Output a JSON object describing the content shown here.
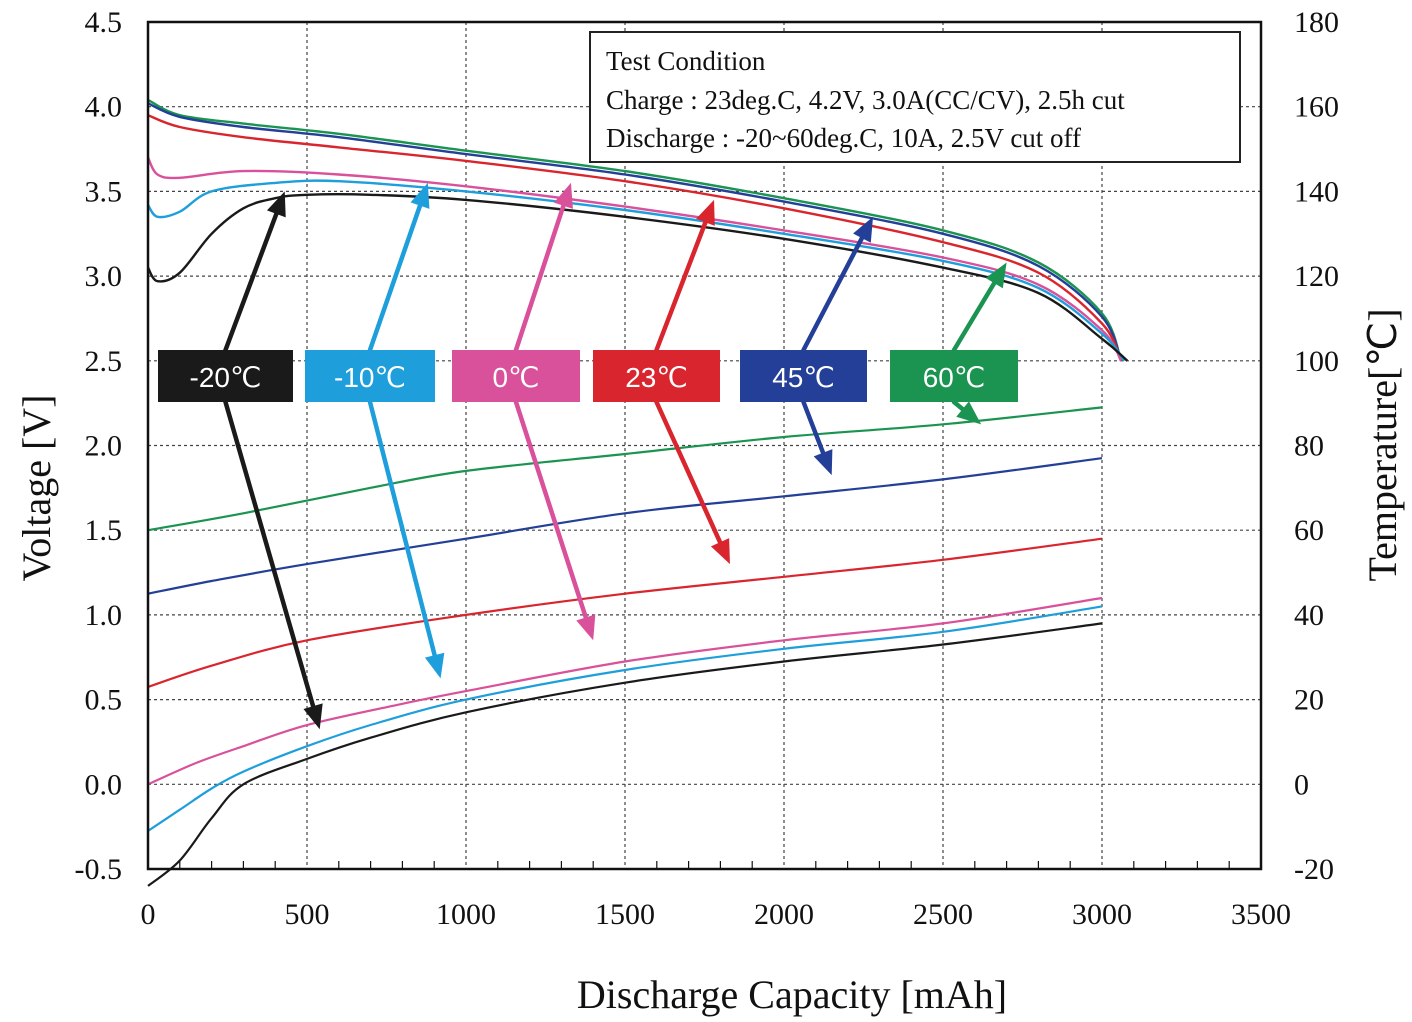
{
  "chart_data": {
    "type": "line",
    "xlabel": "Discharge Capacity [mAh]",
    "ylabel": "Voltage [V]",
    "y2label": "Temperature[℃]",
    "xlim": [
      0,
      3500
    ],
    "ylim": [
      -0.5,
      4.5
    ],
    "y2lim": [
      -20,
      180
    ],
    "x_ticks": [
      "0",
      "500",
      "1000",
      "1500",
      "2000",
      "2500",
      "3000",
      "3500"
    ],
    "y_ticks": [
      "-0.5",
      "0.0",
      "0.5",
      "1.0",
      "1.5",
      "2.0",
      "2.5",
      "3.0",
      "3.5",
      "4.0",
      "4.5"
    ],
    "y2_ticks": [
      "-20",
      "0",
      "20",
      "40",
      "60",
      "80",
      "100",
      "120",
      "140",
      "160",
      "180"
    ],
    "grid": true,
    "test_condition": {
      "title": "Test Condition",
      "charge": "Charge : 23deg.C, 4.2V, 3.0A(CC/CV), 2.5h cut",
      "discharge": "Discharge : -20~60deg.C, 10A, 2.5V cut off"
    },
    "series": [
      {
        "name": "-20℃",
        "color": "#1a1a1a",
        "voltage": [
          [
            0,
            3.05
          ],
          [
            30,
            2.97
          ],
          [
            100,
            3.02
          ],
          [
            200,
            3.25
          ],
          [
            300,
            3.4
          ],
          [
            400,
            3.46
          ],
          [
            500,
            3.48
          ],
          [
            700,
            3.48
          ],
          [
            1000,
            3.45
          ],
          [
            1500,
            3.35
          ],
          [
            2000,
            3.22
          ],
          [
            2500,
            3.05
          ],
          [
            2800,
            2.9
          ],
          [
            3000,
            2.63
          ],
          [
            3080,
            2.5
          ]
        ],
        "temperature": [
          [
            0,
            -24
          ],
          [
            100,
            -18
          ],
          [
            200,
            -8
          ],
          [
            300,
            0
          ],
          [
            500,
            6
          ],
          [
            700,
            11
          ],
          [
            1000,
            17
          ],
          [
            1500,
            24
          ],
          [
            2000,
            29
          ],
          [
            2500,
            33
          ],
          [
            3000,
            38
          ]
        ]
      },
      {
        "name": "-10℃",
        "color": "#1e9fdc",
        "voltage": [
          [
            0,
            3.42
          ],
          [
            30,
            3.35
          ],
          [
            100,
            3.38
          ],
          [
            200,
            3.5
          ],
          [
            400,
            3.55
          ],
          [
            600,
            3.56
          ],
          [
            1000,
            3.5
          ],
          [
            1500,
            3.39
          ],
          [
            2000,
            3.25
          ],
          [
            2500,
            3.09
          ],
          [
            2800,
            2.93
          ],
          [
            3000,
            2.66
          ],
          [
            3070,
            2.5
          ]
        ],
        "temperature": [
          [
            0,
            -11
          ],
          [
            100,
            -6
          ],
          [
            200,
            -1
          ],
          [
            300,
            3
          ],
          [
            500,
            9
          ],
          [
            700,
            14
          ],
          [
            1000,
            20
          ],
          [
            1500,
            27
          ],
          [
            2000,
            32
          ],
          [
            2500,
            36
          ],
          [
            3000,
            42
          ]
        ]
      },
      {
        "name": "0℃",
        "color": "#d9519a",
        "voltage": [
          [
            0,
            3.7
          ],
          [
            30,
            3.6
          ],
          [
            100,
            3.58
          ],
          [
            300,
            3.62
          ],
          [
            600,
            3.6
          ],
          [
            1000,
            3.53
          ],
          [
            1500,
            3.41
          ],
          [
            2000,
            3.27
          ],
          [
            2500,
            3.11
          ],
          [
            2800,
            2.95
          ],
          [
            3000,
            2.68
          ],
          [
            3060,
            2.5
          ]
        ],
        "temperature": [
          [
            0,
            0
          ],
          [
            150,
            5
          ],
          [
            300,
            9
          ],
          [
            500,
            14
          ],
          [
            800,
            19
          ],
          [
            1000,
            22
          ],
          [
            1500,
            29
          ],
          [
            2000,
            34
          ],
          [
            2500,
            38
          ],
          [
            3000,
            44
          ]
        ]
      },
      {
        "name": "23℃",
        "color": "#d9262e",
        "voltage": [
          [
            0,
            3.95
          ],
          [
            100,
            3.88
          ],
          [
            300,
            3.82
          ],
          [
            600,
            3.76
          ],
          [
            1000,
            3.68
          ],
          [
            1500,
            3.56
          ],
          [
            2000,
            3.4
          ],
          [
            2500,
            3.2
          ],
          [
            2800,
            3.02
          ],
          [
            3000,
            2.72
          ],
          [
            3060,
            2.5
          ]
        ],
        "temperature": [
          [
            0,
            23
          ],
          [
            200,
            28
          ],
          [
            500,
            34
          ],
          [
            1000,
            40
          ],
          [
            1500,
            45
          ],
          [
            2000,
            49
          ],
          [
            2500,
            53
          ],
          [
            3000,
            58
          ]
        ]
      },
      {
        "name": "45℃",
        "color": "#243f97",
        "voltage": [
          [
            0,
            4.02
          ],
          [
            100,
            3.94
          ],
          [
            300,
            3.88
          ],
          [
            600,
            3.82
          ],
          [
            1000,
            3.72
          ],
          [
            1500,
            3.6
          ],
          [
            2000,
            3.44
          ],
          [
            2500,
            3.25
          ],
          [
            2800,
            3.06
          ],
          [
            3000,
            2.76
          ],
          [
            3060,
            2.5
          ]
        ],
        "temperature": [
          [
            0,
            45
          ],
          [
            200,
            48
          ],
          [
            500,
            52
          ],
          [
            1000,
            58
          ],
          [
            1500,
            64
          ],
          [
            2000,
            68
          ],
          [
            2500,
            72
          ],
          [
            3000,
            77
          ]
        ]
      },
      {
        "name": "60℃",
        "color": "#1a9450",
        "voltage": [
          [
            0,
            4.04
          ],
          [
            100,
            3.95
          ],
          [
            300,
            3.9
          ],
          [
            600,
            3.84
          ],
          [
            1000,
            3.74
          ],
          [
            1500,
            3.62
          ],
          [
            2000,
            3.46
          ],
          [
            2500,
            3.27
          ],
          [
            2800,
            3.08
          ],
          [
            3000,
            2.78
          ],
          [
            3060,
            2.5
          ]
        ],
        "temperature": [
          [
            0,
            60
          ],
          [
            300,
            64
          ],
          [
            700,
            70
          ],
          [
            1000,
            74
          ],
          [
            1500,
            78
          ],
          [
            2000,
            82
          ],
          [
            2500,
            85
          ],
          [
            3000,
            89
          ]
        ]
      }
    ]
  }
}
